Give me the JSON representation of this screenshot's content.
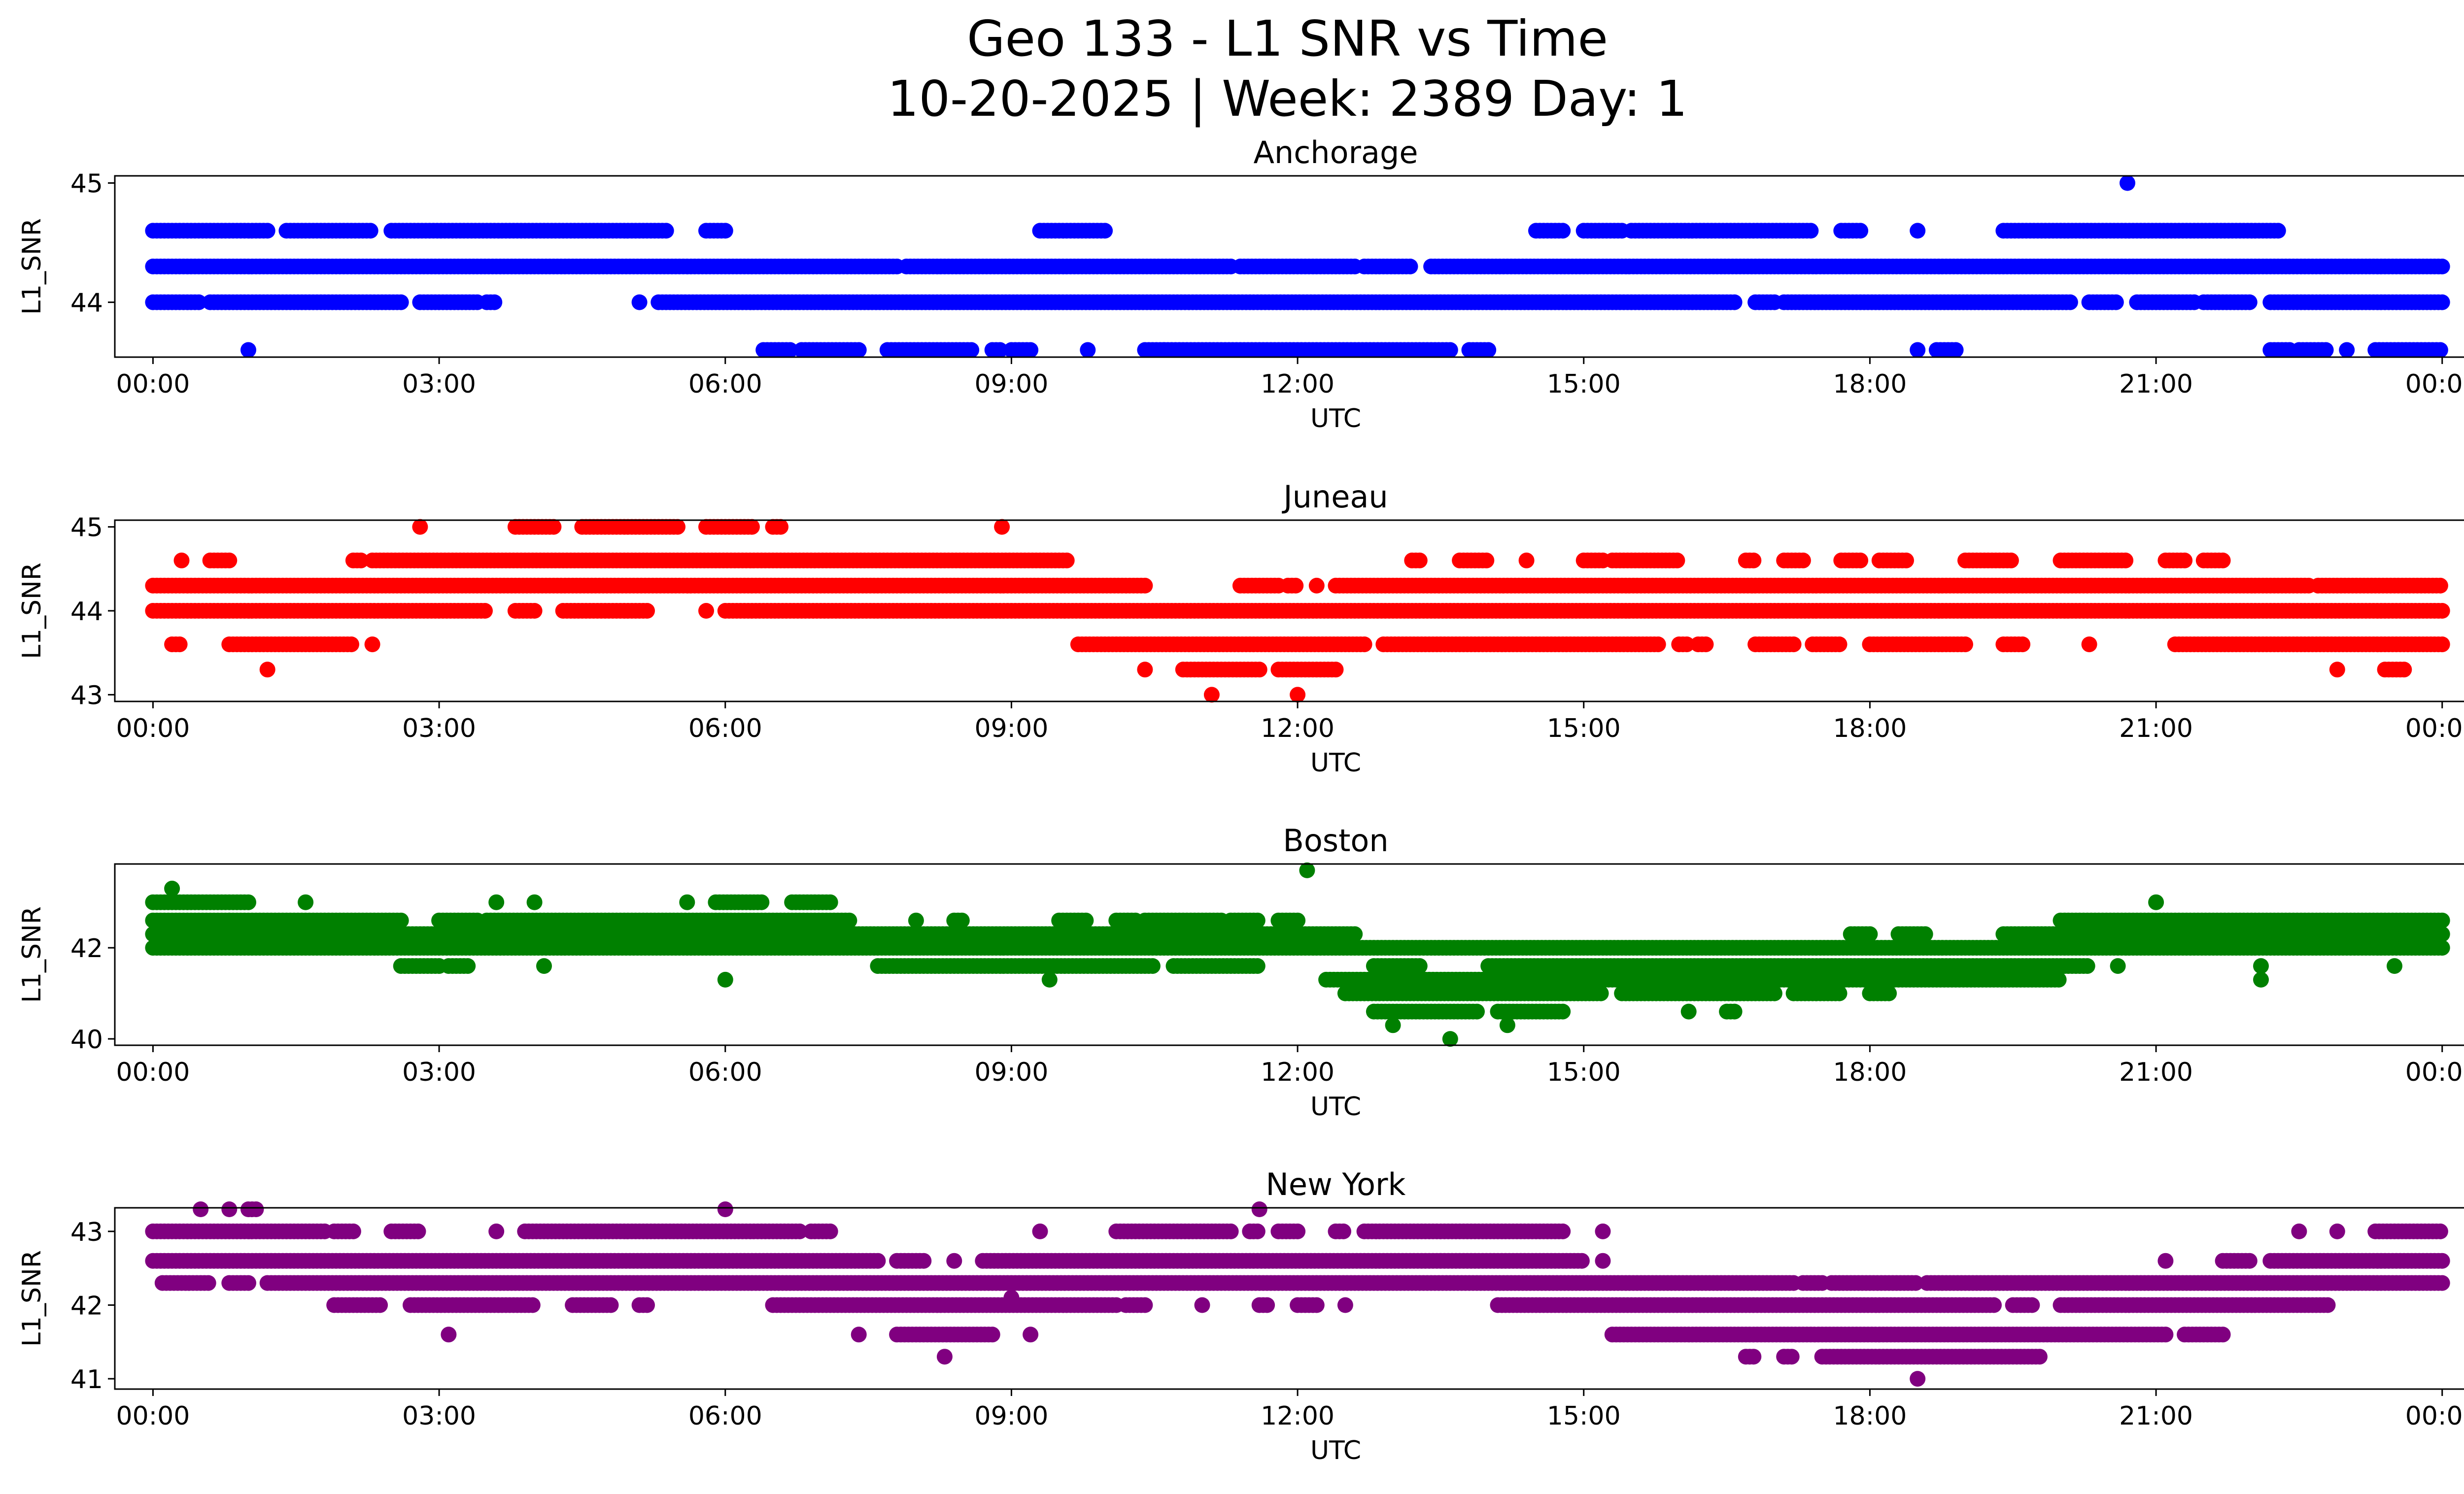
{
  "title_line1": "Geo 133 - L1 SNR vs Time",
  "title_line2": "10-20-2025 | Week: 2389 Day: 1",
  "x_tick_labels": [
    "00:00",
    "03:00",
    "06:00",
    "09:00",
    "12:00",
    "15:00",
    "18:00",
    "21:00",
    "00:00"
  ],
  "chart_data": [
    {
      "type": "scatter",
      "title": "Anchorage",
      "xlabel": "UTC",
      "ylabel": "L1_SNR",
      "color": "#0000ff",
      "xlim": [
        -0.4,
        25.2
      ],
      "ylim": [
        43.54,
        45.06
      ],
      "y_ticks": [
        44,
        45
      ],
      "bands": [
        {
          "y": 44.6,
          "ranges": [
            [
              0.0,
              1.2
            ],
            [
              1.4,
              2.3
            ],
            [
              2.5,
              5.4
            ],
            [
              5.8,
              6.0
            ],
            [
              9.3,
              10.0
            ],
            [
              14.5,
              14.8
            ],
            [
              15.0,
              15.4
            ],
            [
              15.5,
              17.4
            ],
            [
              17.7,
              17.9
            ],
            [
              18.5,
              18.5
            ],
            [
              19.4,
              22.3
            ]
          ]
        },
        {
          "y": 44.3,
          "ranges": [
            [
              0.0,
              7.8
            ],
            [
              7.9,
              11.3
            ],
            [
              11.4,
              12.6
            ],
            [
              12.7,
              13.2
            ],
            [
              13.4,
              24.0
            ]
          ]
        },
        {
          "y": 44.0,
          "ranges": [
            [
              0.0,
              0.5
            ],
            [
              0.6,
              2.6
            ],
            [
              2.8,
              3.4
            ],
            [
              3.5,
              3.6
            ],
            [
              5.1,
              5.1
            ],
            [
              5.3,
              16.6
            ],
            [
              16.8,
              17.0
            ],
            [
              17.1,
              20.1
            ],
            [
              20.3,
              20.6
            ],
            [
              20.8,
              21.4
            ],
            [
              21.5,
              22.0
            ],
            [
              22.2,
              24.0
            ]
          ]
        },
        {
          "y": 43.6,
          "ranges": [
            [
              1.0,
              1.0
            ],
            [
              6.4,
              6.7
            ],
            [
              6.8,
              7.4
            ],
            [
              7.7,
              8.6
            ],
            [
              8.8,
              8.9
            ],
            [
              9.0,
              9.2
            ],
            [
              9.8,
              9.8
            ],
            [
              10.4,
              10.6
            ],
            [
              10.6,
              13.6
            ],
            [
              13.8,
              14.0
            ],
            [
              18.5,
              18.5
            ],
            [
              18.7,
              18.9
            ],
            [
              22.2,
              22.4
            ],
            [
              22.5,
              22.8
            ],
            [
              23.0,
              23.0
            ],
            [
              23.3,
              24.0
            ]
          ]
        },
        {
          "y": 45.0,
          "ranges": [
            [
              20.7,
              20.7
            ]
          ]
        }
      ]
    },
    {
      "type": "scatter",
      "title": "Juneau",
      "xlabel": "UTC",
      "ylabel": "L1_SNR",
      "color": "#ff0000",
      "xlim": [
        -0.4,
        25.2
      ],
      "ylim": [
        42.92,
        45.08
      ],
      "y_ticks": [
        43,
        44,
        45
      ],
      "bands": [
        {
          "y": 45.0,
          "ranges": [
            [
              2.8,
              2.8
            ],
            [
              3.8,
              4.2
            ],
            [
              4.5,
              5.5
            ],
            [
              5.8,
              6.3
            ],
            [
              6.5,
              6.6
            ],
            [
              8.9,
              8.9
            ]
          ]
        },
        {
          "y": 44.6,
          "ranges": [
            [
              0.3,
              0.3
            ],
            [
              0.6,
              0.8
            ],
            [
              2.1,
              2.2
            ],
            [
              2.3,
              9.6
            ],
            [
              13.2,
              13.3
            ],
            [
              13.7,
              14.0
            ],
            [
              14.4,
              14.4
            ],
            [
              15.0,
              15.2
            ],
            [
              15.3,
              16.0
            ],
            [
              16.7,
              16.8
            ],
            [
              17.1,
              17.3
            ],
            [
              17.7,
              17.9
            ],
            [
              18.1,
              18.4
            ],
            [
              19.0,
              19.5
            ],
            [
              20.0,
              20.7
            ],
            [
              21.1,
              21.3
            ],
            [
              21.5,
              21.7
            ]
          ]
        },
        {
          "y": 44.3,
          "ranges": [
            [
              0.0,
              10.4
            ],
            [
              11.4,
              11.8
            ],
            [
              11.9,
              12.0
            ],
            [
              12.2,
              12.2
            ],
            [
              12.4,
              22.6
            ],
            [
              22.7,
              24.0
            ]
          ]
        },
        {
          "y": 44.0,
          "ranges": [
            [
              0.0,
              3.5
            ],
            [
              3.8,
              4.0
            ],
            [
              4.3,
              5.2
            ],
            [
              5.8,
              5.8
            ],
            [
              6.0,
              24.0
            ]
          ]
        },
        {
          "y": 43.6,
          "ranges": [
            [
              0.2,
              0.3
            ],
            [
              0.8,
              2.1
            ],
            [
              2.3,
              2.3
            ],
            [
              9.7,
              12.7
            ],
            [
              12.9,
              15.8
            ],
            [
              16.0,
              16.1
            ],
            [
              16.2,
              16.3
            ],
            [
              16.8,
              17.2
            ],
            [
              17.4,
              17.7
            ],
            [
              18.0,
              19.0
            ],
            [
              19.4,
              19.6
            ],
            [
              20.3,
              20.3
            ],
            [
              21.2,
              24.0
            ]
          ]
        },
        {
          "y": 43.3,
          "ranges": [
            [
              1.2,
              1.2
            ],
            [
              10.4,
              10.4
            ],
            [
              10.8,
              11.6
            ],
            [
              11.8,
              12.4
            ],
            [
              22.9,
              22.9
            ],
            [
              23.4,
              23.6
            ]
          ]
        },
        {
          "y": 43.0,
          "ranges": [
            [
              11.1,
              11.1
            ],
            [
              12.0,
              12.0
            ]
          ]
        }
      ]
    },
    {
      "type": "scatter",
      "title": "Boston",
      "xlabel": "UTC",
      "ylabel": "L1_SNR",
      "color": "#008000",
      "xlim": [
        -0.4,
        25.2
      ],
      "ylim": [
        39.86,
        43.84
      ],
      "y_ticks": [
        40,
        42
      ],
      "bands": [
        {
          "y": 43.7,
          "ranges": [
            [
              12.1,
              12.1
            ]
          ]
        },
        {
          "y": 43.3,
          "ranges": [
            [
              0.2,
              0.2
            ]
          ]
        },
        {
          "y": 43.0,
          "ranges": [
            [
              0.0,
              1.0
            ],
            [
              1.6,
              1.6
            ],
            [
              3.6,
              3.6
            ],
            [
              4.0,
              4.0
            ],
            [
              5.6,
              5.6
            ],
            [
              5.9,
              6.4
            ],
            [
              6.7,
              7.1
            ],
            [
              21.0,
              21.0
            ]
          ]
        },
        {
          "y": 42.6,
          "ranges": [
            [
              0.0,
              0.8
            ],
            [
              0.8,
              2.6
            ],
            [
              3.0,
              3.4
            ],
            [
              3.5,
              7.3
            ],
            [
              8.0,
              8.0
            ],
            [
              8.4,
              8.5
            ],
            [
              9.5,
              9.8
            ],
            [
              10.1,
              10.3
            ],
            [
              10.4,
              11.2
            ],
            [
              11.3,
              11.6
            ],
            [
              11.8,
              12.0
            ],
            [
              20.0,
              24.0
            ]
          ]
        },
        {
          "y": 42.3,
          "ranges": [
            [
              0.0,
              12.6
            ],
            [
              17.8,
              18.0
            ],
            [
              18.3,
              18.6
            ],
            [
              19.4,
              24.0
            ]
          ]
        },
        {
          "y": 42.0,
          "ranges": [
            [
              0.0,
              24.0
            ]
          ]
        },
        {
          "y": 41.6,
          "ranges": [
            [
              2.6,
              3.0
            ],
            [
              3.1,
              3.3
            ],
            [
              4.1,
              4.1
            ],
            [
              7.6,
              10.5
            ],
            [
              10.7,
              11.6
            ],
            [
              12.8,
              13.3
            ],
            [
              14.0,
              20.3
            ],
            [
              20.6,
              20.6
            ],
            [
              22.1,
              22.1
            ],
            [
              23.5,
              23.5
            ]
          ]
        },
        {
          "y": 41.3,
          "ranges": [
            [
              6.0,
              6.0
            ],
            [
              9.4,
              9.4
            ],
            [
              12.3,
              20.0
            ],
            [
              22.1,
              22.1
            ]
          ]
        },
        {
          "y": 41.0,
          "ranges": [
            [
              12.5,
              15.2
            ],
            [
              15.4,
              17.0
            ],
            [
              17.2,
              17.7
            ],
            [
              18.0,
              18.2
            ]
          ]
        },
        {
          "y": 40.6,
          "ranges": [
            [
              12.8,
              13.9
            ],
            [
              14.1,
              14.8
            ],
            [
              16.1,
              16.1
            ],
            [
              16.5,
              16.6
            ]
          ]
        },
        {
          "y": 40.3,
          "ranges": [
            [
              13.0,
              13.0
            ],
            [
              14.2,
              14.2
            ]
          ]
        },
        {
          "y": 40.0,
          "ranges": [
            [
              13.6,
              13.6
            ]
          ]
        }
      ]
    },
    {
      "type": "scatter",
      "title": "New York",
      "xlabel": "UTC",
      "ylabel": "L1_SNR",
      "color": "#800080",
      "xlim": [
        -0.4,
        25.2
      ],
      "ylim": [
        40.86,
        43.32
      ],
      "y_ticks": [
        41,
        42,
        43
      ],
      "bands": [
        {
          "y": 43.3,
          "ranges": [
            [
              0.5,
              0.5
            ],
            [
              0.8,
              0.8
            ],
            [
              1.0,
              1.1
            ],
            [
              6.0,
              6.0
            ],
            [
              11.6,
              11.6
            ]
          ]
        },
        {
          "y": 43.0,
          "ranges": [
            [
              0.0,
              1.8
            ],
            [
              1.9,
              2.1
            ],
            [
              2.5,
              2.8
            ],
            [
              3.6,
              3.6
            ],
            [
              3.9,
              6.8
            ],
            [
              6.9,
              7.1
            ],
            [
              9.3,
              9.3
            ],
            [
              10.1,
              11.3
            ],
            [
              11.5,
              11.6
            ],
            [
              11.8,
              12.0
            ],
            [
              12.4,
              12.5
            ],
            [
              12.7,
              14.8
            ],
            [
              15.2,
              15.2
            ],
            [
              22.5,
              22.5
            ],
            [
              22.9,
              22.9
            ],
            [
              23.3,
              24.0
            ]
          ]
        },
        {
          "y": 42.6,
          "ranges": [
            [
              0.0,
              7.6
            ],
            [
              7.8,
              8.1
            ],
            [
              8.4,
              8.4
            ],
            [
              8.7,
              15.0
            ],
            [
              15.2,
              15.2
            ],
            [
              21.1,
              21.1
            ],
            [
              21.7,
              22.0
            ],
            [
              22.2,
              24.0
            ]
          ]
        },
        {
          "y": 42.3,
          "ranges": [
            [
              0.1,
              0.6
            ],
            [
              0.8,
              1.0
            ],
            [
              1.2,
              17.2
            ],
            [
              17.3,
              17.5
            ],
            [
              17.6,
              18.5
            ],
            [
              18.6,
              24.0
            ]
          ]
        },
        {
          "y": 42.0,
          "ranges": [
            [
              1.9,
              2.4
            ],
            [
              2.7,
              4.0
            ],
            [
              4.4,
              4.8
            ],
            [
              5.1,
              5.2
            ],
            [
              6.5,
              10.1
            ],
            [
              10.2,
              10.4
            ],
            [
              11.0,
              11.0
            ],
            [
              11.6,
              11.7
            ],
            [
              12.0,
              12.2
            ],
            [
              12.5,
              12.5
            ],
            [
              14.1,
              19.3
            ],
            [
              19.5,
              19.7
            ],
            [
              20.0,
              22.8
            ]
          ]
        },
        {
          "y": 41.6,
          "ranges": [
            [
              3.1,
              3.1
            ],
            [
              7.4,
              7.4
            ],
            [
              7.8,
              8.8
            ],
            [
              9.2,
              9.2
            ],
            [
              15.3,
              21.1
            ],
            [
              21.3,
              21.7
            ]
          ]
        },
        {
          "y": 41.3,
          "ranges": [
            [
              8.3,
              8.3
            ],
            [
              16.7,
              16.8
            ],
            [
              17.1,
              17.2
            ],
            [
              17.5,
              19.8
            ]
          ]
        },
        {
          "y": 41.0,
          "ranges": [
            [
              18.5,
              18.5
            ]
          ]
        },
        {
          "y": 42.1,
          "ranges": [
            [
              9.0,
              9.0
            ]
          ]
        }
      ]
    }
  ]
}
